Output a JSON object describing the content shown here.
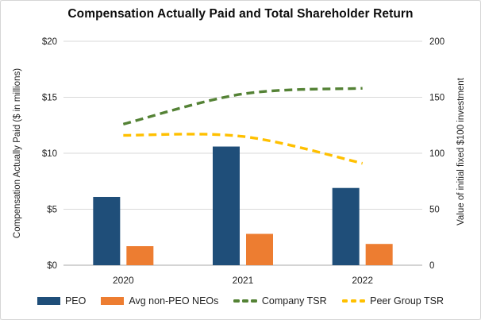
{
  "title": "Compensation Actually Paid and Total Shareholder Return",
  "chart_data": {
    "type": "combo-bar-line",
    "title": "Compensation Actually Paid and Total Shareholder Return",
    "categories": [
      "2020",
      "2021",
      "2022"
    ],
    "bar_series": [
      {
        "name": "PEO",
        "color": "#1F4E79",
        "axis": "left",
        "values": [
          6.1,
          10.6,
          6.9
        ]
      },
      {
        "name": "Avg non-PEO NEOs",
        "color": "#ED7D31",
        "axis": "left",
        "values": [
          1.7,
          2.8,
          1.9
        ]
      }
    ],
    "line_series": [
      {
        "name": "Company TSR",
        "color": "#548235",
        "axis": "right",
        "style": "dashed",
        "values": [
          126,
          153,
          158
        ]
      },
      {
        "name": "Peer Group TSR",
        "color": "#FFC000",
        "axis": "right",
        "style": "dashed",
        "values": [
          116,
          115,
          91
        ]
      }
    ],
    "axis_left": {
      "label": "Compensation Actually Paid ($ in millions)",
      "ticks": [
        "$0",
        "$5",
        "$10",
        "$15",
        "$20"
      ],
      "tick_values": [
        0,
        5,
        10,
        15,
        20
      ],
      "range": [
        0,
        20
      ]
    },
    "axis_right": {
      "label": "Value of initial fixed $100 investment",
      "ticks": [
        "0",
        "50",
        "100",
        "150",
        "200"
      ],
      "tick_values": [
        0,
        50,
        100,
        150,
        200
      ],
      "range": [
        0,
        200
      ]
    },
    "grid": true,
    "legend_position": "bottom"
  },
  "legend": {
    "items": [
      {
        "label": "PEO",
        "swatch": "rect",
        "color": "#1F4E79"
      },
      {
        "label": "Avg non-PEO NEOs",
        "swatch": "rect",
        "color": "#ED7D31"
      },
      {
        "label": "Company TSR",
        "swatch": "dashes",
        "color": "#548235"
      },
      {
        "label": "Peer Group TSR",
        "swatch": "dashes",
        "color": "#FFC000"
      }
    ]
  },
  "colors": {
    "grid": "#D9D9D9",
    "axis_line": "#C6C6C6",
    "text": "#1F1F1F",
    "background": "#FFFFFF",
    "border": "#D6D6D6"
  }
}
